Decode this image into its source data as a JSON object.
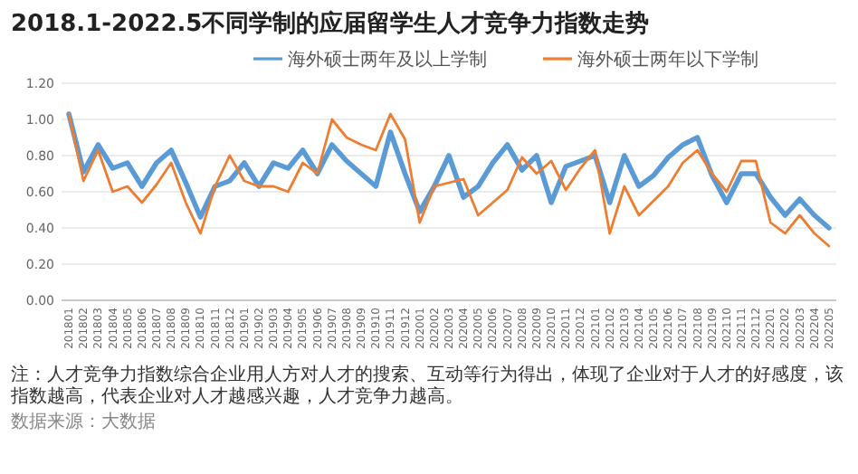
{
  "chart_data": {
    "type": "line",
    "title": "2018.1-2022.5不同学制的应届留学生人才竞争力指数走势",
    "categories": [
      "201801",
      "201802",
      "201803",
      "201804",
      "201805",
      "201806",
      "201807",
      "201808",
      "201809",
      "201810",
      "201811",
      "201812",
      "201901",
      "201902",
      "201903",
      "201904",
      "201905",
      "201906",
      "201907",
      "201908",
      "201909",
      "201910",
      "201911",
      "201912",
      "202001",
      "202002",
      "202003",
      "202004",
      "202005",
      "202006",
      "202007",
      "202008",
      "202009",
      "202010",
      "202011",
      "202012",
      "202101",
      "202102",
      "202103",
      "202104",
      "202105",
      "202106",
      "202107",
      "202108",
      "202109",
      "202110",
      "202111",
      "202112",
      "202201",
      "202202",
      "202203",
      "202204",
      "202205"
    ],
    "series": [
      {
        "name": "海外硕士两年及以上学制",
        "color": "#5b9bd5",
        "values": [
          1.03,
          0.71,
          0.86,
          0.73,
          0.76,
          0.63,
          0.76,
          0.83,
          0.65,
          0.46,
          0.63,
          0.66,
          0.76,
          0.63,
          0.76,
          0.73,
          0.83,
          0.7,
          0.86,
          0.77,
          0.7,
          0.63,
          0.93,
          0.7,
          0.49,
          0.63,
          0.8,
          0.57,
          0.63,
          0.76,
          0.86,
          0.72,
          0.8,
          0.54,
          0.74,
          0.77,
          0.8,
          0.54,
          0.8,
          0.63,
          0.69,
          0.79,
          0.86,
          0.9,
          0.69,
          0.54,
          0.7,
          0.7,
          0.57,
          0.47,
          0.56,
          0.47,
          0.4
        ]
      },
      {
        "name": "海外硕士两年以下学制",
        "color": "#ed7d31",
        "values": [
          1.03,
          0.66,
          0.83,
          0.6,
          0.63,
          0.54,
          0.64,
          0.76,
          0.54,
          0.37,
          0.63,
          0.8,
          0.66,
          0.63,
          0.63,
          0.6,
          0.76,
          0.7,
          1.0,
          0.9,
          0.86,
          0.83,
          1.03,
          0.89,
          0.43,
          0.63,
          0.65,
          0.67,
          0.47,
          0.54,
          0.61,
          0.79,
          0.7,
          0.77,
          0.61,
          0.73,
          0.83,
          0.37,
          0.63,
          0.47,
          0.55,
          0.63,
          0.76,
          0.83,
          0.7,
          0.6,
          0.77,
          0.77,
          0.43,
          0.37,
          0.47,
          0.37,
          0.3
        ]
      }
    ],
    "ylim": [
      0,
      1.2
    ],
    "yticks": [
      {
        "value": 0,
        "label": "0.00"
      },
      {
        "value": 0.2,
        "label": "0.20"
      },
      {
        "value": 0.4,
        "label": "0.40"
      },
      {
        "value": 0.6,
        "label": "0.60"
      },
      {
        "value": 0.8,
        "label": "0.80"
      },
      {
        "value": 1.0,
        "label": "1.00"
      },
      {
        "value": 1.2,
        "label": "1.20"
      }
    ],
    "grid": "y",
    "legend": "top",
    "marker": "none",
    "line_style": "solid",
    "annotations": [
      "注：人才竞争力指数综合企业用人方对人才的搜索、互动等行为得出，体现了企业对于人才的好感度，该指数越高，代表企业对人才越感兴趣，人才竞争力越高。",
      "数据来源：大数据"
    ]
  }
}
